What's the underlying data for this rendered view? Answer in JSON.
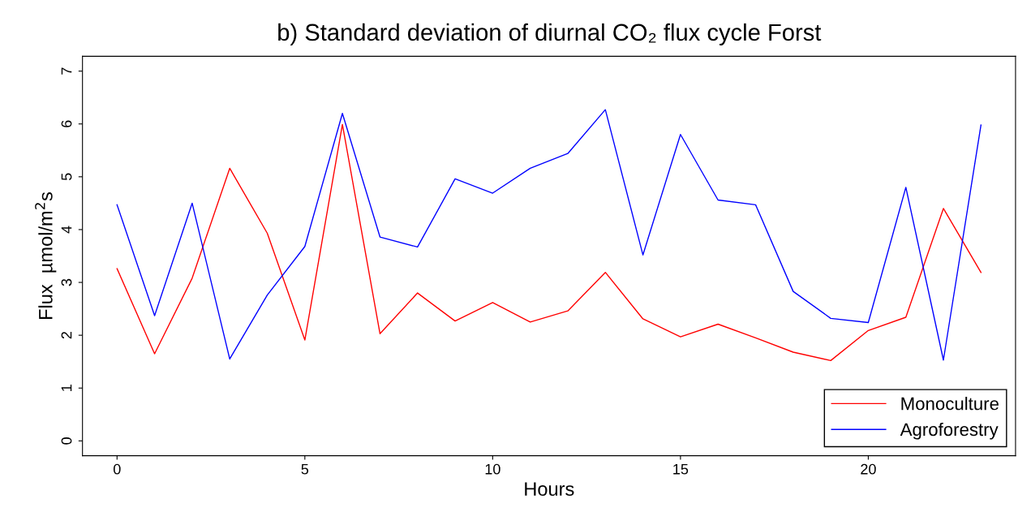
{
  "chart_data": {
    "type": "line",
    "title": "b) Standard deviation of diurnal CO₂ flux cycle Forst",
    "xlabel": "Hours",
    "ylabel": "Flux  µmol/m$^{2}$s",
    "x": [
      0,
      1,
      2,
      3,
      4,
      5,
      6,
      7,
      8,
      9,
      10,
      11,
      12,
      13,
      14,
      15,
      16,
      17,
      18,
      19,
      20,
      21,
      22,
      23
    ],
    "series": [
      {
        "name": "Monoculture",
        "color": "#ff0000",
        "values": [
          3.26,
          1.65,
          3.08,
          5.16,
          3.93,
          1.91,
          5.99,
          2.03,
          2.8,
          2.27,
          2.62,
          2.25,
          2.46,
          3.19,
          2.31,
          1.97,
          2.21,
          1.95,
          1.68,
          1.52,
          2.09,
          2.34,
          4.4,
          3.19
        ]
      },
      {
        "name": "Agroforestry",
        "color": "#0000ff",
        "values": [
          4.47,
          2.37,
          4.5,
          1.55,
          2.76,
          3.68,
          6.2,
          3.86,
          3.67,
          4.96,
          4.69,
          5.16,
          5.44,
          6.27,
          3.52,
          5.8,
          4.56,
          4.47,
          2.83,
          2.32,
          2.24,
          4.8,
          1.53,
          5.98
        ]
      }
    ],
    "xlim": [
      -0.92,
      23.92
    ],
    "ylim": [
      -0.28,
      7.28
    ],
    "xticks": [
      0,
      5,
      10,
      15,
      20
    ],
    "yticks": [
      0,
      1,
      2,
      3,
      4,
      5,
      6,
      7
    ],
    "legend": "bottom right",
    "grid": false
  }
}
